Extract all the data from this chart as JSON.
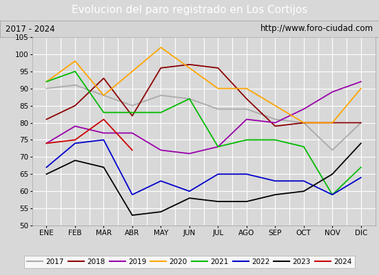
{
  "title": "Evolucion del paro registrado en Los Cortijos",
  "subtitle_left": "2017 - 2024",
  "subtitle_right": "http://www.foro-ciudad.com",
  "months": [
    "ENE",
    "FEB",
    "MAR",
    "ABR",
    "MAY",
    "JUN",
    "JUL",
    "AGO",
    "SEP",
    "OCT",
    "NOV",
    "DIC"
  ],
  "series_data": {
    "2017": [
      90,
      91,
      88,
      85,
      88,
      87,
      84,
      84,
      81,
      80,
      72,
      80
    ],
    "2018": [
      81,
      85,
      93,
      82,
      96,
      97,
      96,
      87,
      79,
      80,
      80,
      80
    ],
    "2019": [
      74,
      79,
      77,
      77,
      72,
      71,
      73,
      81,
      80,
      84,
      89,
      92
    ],
    "2020": [
      92,
      98,
      88,
      95,
      102,
      96,
      90,
      90,
      85,
      80,
      80,
      90
    ],
    "2021": [
      92,
      95,
      83,
      83,
      83,
      87,
      73,
      75,
      75,
      73,
      59,
      67
    ],
    "2022": [
      67,
      74,
      75,
      59,
      63,
      60,
      65,
      65,
      63,
      63,
      59,
      64
    ],
    "2023": [
      65,
      69,
      67,
      53,
      54,
      58,
      57,
      57,
      59,
      60,
      65,
      74
    ],
    "2024": [
      74,
      75,
      81,
      72,
      null,
      null,
      null,
      null,
      null,
      null,
      null,
      null
    ]
  },
  "series_colors": {
    "2017": "#aaaaaa",
    "2018": "#8b0000",
    "2019": "#9900aa",
    "2020": "#ffa500",
    "2021": "#00bb00",
    "2022": "#0000cc",
    "2023": "#000000",
    "2024": "#cc0000"
  },
  "ylim": [
    50,
    105
  ],
  "yticks": [
    50,
    55,
    60,
    65,
    70,
    75,
    80,
    85,
    90,
    95,
    100,
    105
  ],
  "bg_color": "#d8d8d8",
  "plot_bg_color": "#d8d8d8",
  "title_bg_color": "#4472c4",
  "title_color": "white",
  "grid_color": "#ffffff",
  "header_bg": "#d4d4d4"
}
